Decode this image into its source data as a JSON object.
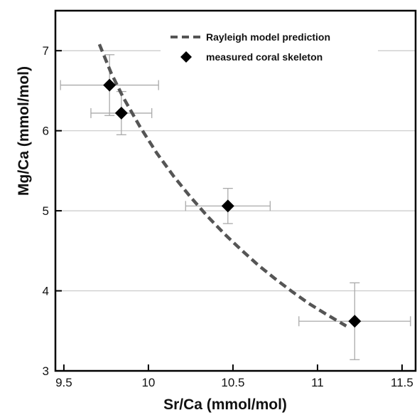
{
  "chart_data": {
    "type": "scatter",
    "xlabel": "Sr/Ca (mmol/mol)",
    "ylabel": "Mg/Ca (mmol/mol)",
    "xlim": [
      9.45,
      11.58
    ],
    "ylim": [
      3,
      7.5
    ],
    "x_ticks": [
      9.5,
      10,
      10.5,
      11,
      11.5
    ],
    "x_tick_labels": [
      "9.5",
      "10",
      "10.5",
      "11",
      "11.5"
    ],
    "y_ticks": [
      3,
      4,
      5,
      6,
      7
    ],
    "y_tick_labels": [
      "3",
      "4",
      "5",
      "6",
      "7"
    ],
    "grid": "horizontal",
    "legend_position": "top-right",
    "colors": {
      "model": "#555555",
      "points": "#000000",
      "error_bars": "#aaaaaa",
      "grid": "#c8c8c8"
    },
    "series": [
      {
        "name": "Rayleigh model prediction",
        "style": "dashed-line",
        "x": [
          9.71,
          9.78,
          9.85,
          9.95,
          10.05,
          10.15,
          10.25,
          10.35,
          10.45,
          10.55,
          10.65,
          10.75,
          10.85,
          10.95,
          11.05,
          11.17
        ],
        "y": [
          7.08,
          6.72,
          6.42,
          6.05,
          5.72,
          5.43,
          5.17,
          4.93,
          4.71,
          4.51,
          4.32,
          4.15,
          3.99,
          3.84,
          3.71,
          3.56
        ]
      },
      {
        "name": "measured coral skeleton",
        "style": "diamond-markers",
        "points": [
          {
            "x": 9.77,
            "y": 6.57,
            "x_err": 0.29,
            "y_err": 0.38
          },
          {
            "x": 9.84,
            "y": 6.22,
            "x_err": 0.18,
            "y_err": 0.27
          },
          {
            "x": 10.47,
            "y": 5.06,
            "x_err": 0.25,
            "y_err": 0.22
          },
          {
            "x": 11.22,
            "y": 3.62,
            "x_err": 0.33,
            "y_err": 0.48
          }
        ]
      }
    ]
  }
}
